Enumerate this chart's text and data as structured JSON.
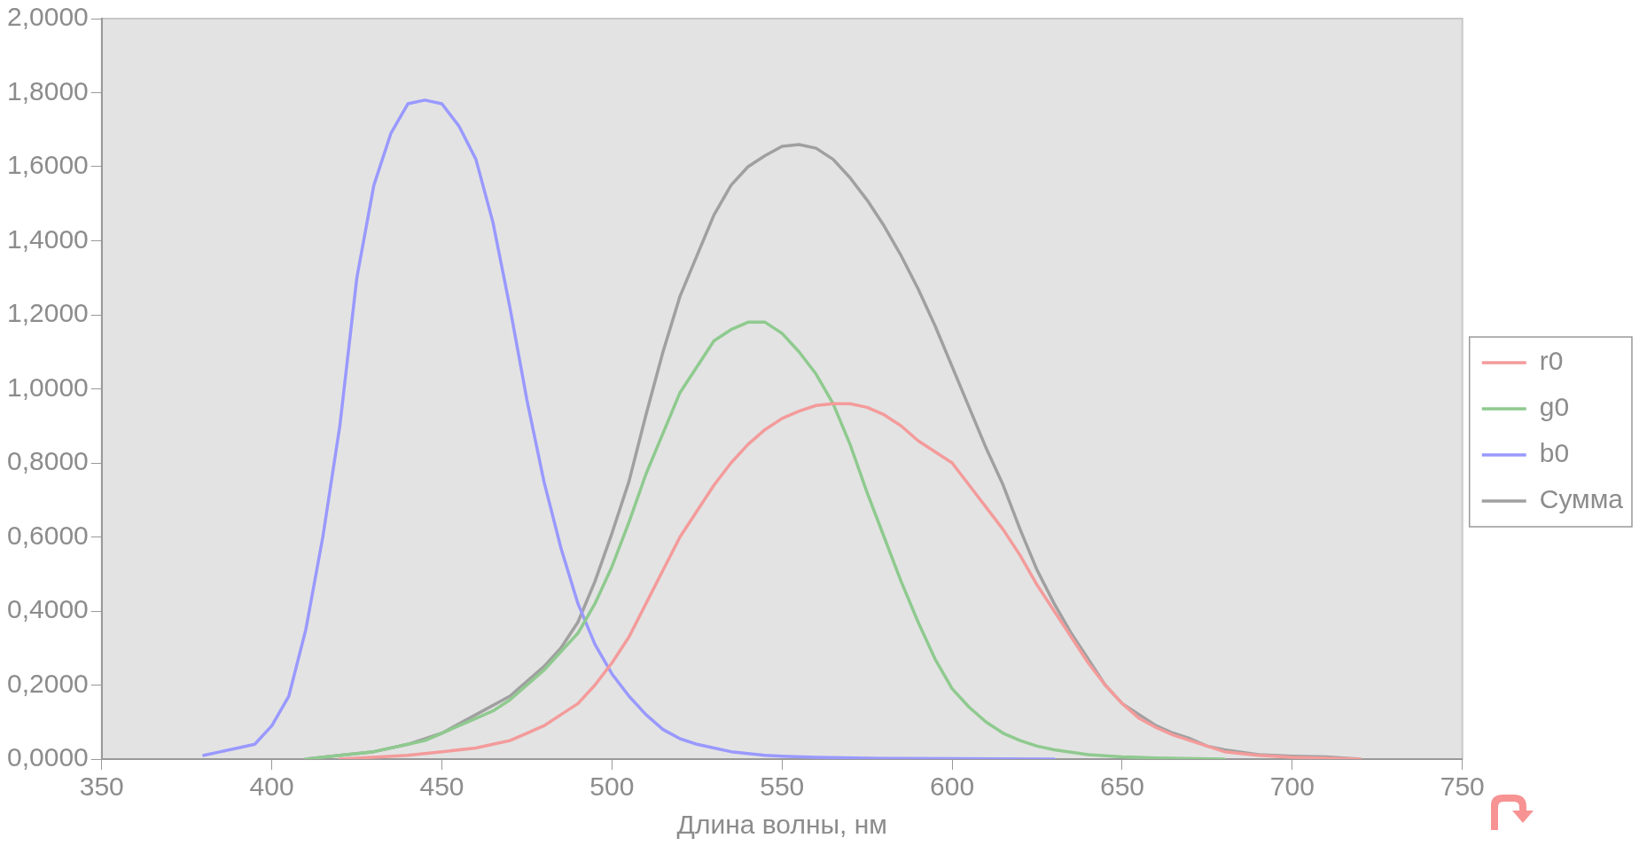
{
  "chart_data": {
    "type": "line",
    "xlabel": "Длина волны, нм",
    "xlim": [
      350,
      750
    ],
    "xticks": [
      350,
      400,
      450,
      500,
      550,
      600,
      650,
      700,
      750
    ],
    "ylim": [
      0,
      2
    ],
    "yticks": [
      {
        "value": 0,
        "label": "0,0000"
      },
      {
        "value": 0.2,
        "label": "0,2000"
      },
      {
        "value": 0.4,
        "label": "0,4000"
      },
      {
        "value": 0.6,
        "label": "0,6000"
      },
      {
        "value": 0.8,
        "label": "0,8000"
      },
      {
        "value": 1,
        "label": "1,0000"
      },
      {
        "value": 1.2,
        "label": "1,2000"
      },
      {
        "value": 1.4,
        "label": "1,4000"
      },
      {
        "value": 1.6,
        "label": "1,6000"
      },
      {
        "value": 1.8,
        "label": "1,8000"
      },
      {
        "value": 2,
        "label": "2,0000"
      }
    ],
    "grid": false,
    "legend": "right",
    "marker": "none",
    "line_style": "solid",
    "series": [
      {
        "name": "r0",
        "color": "#f49b9b",
        "x": [
          420,
          440,
          450,
          460,
          465,
          470,
          475,
          480,
          485,
          490,
          495,
          500,
          505,
          510,
          515,
          520,
          525,
          530,
          535,
          540,
          545,
          550,
          555,
          560,
          565,
          570,
          575,
          580,
          585,
          590,
          595,
          600,
          605,
          610,
          615,
          620,
          625,
          630,
          635,
          640,
          645,
          650,
          655,
          660,
          665,
          670,
          675,
          680,
          690,
          700,
          720
        ],
        "values": [
          0,
          0.01,
          0.02,
          0.03,
          0.04,
          0.05,
          0.07,
          0.09,
          0.12,
          0.15,
          0.2,
          0.26,
          0.33,
          0.42,
          0.51,
          0.6,
          0.67,
          0.74,
          0.8,
          0.85,
          0.89,
          0.92,
          0.94,
          0.955,
          0.96,
          0.96,
          0.95,
          0.93,
          0.9,
          0.86,
          0.83,
          0.8,
          0.74,
          0.68,
          0.62,
          0.55,
          0.47,
          0.4,
          0.33,
          0.26,
          0.2,
          0.15,
          0.11,
          0.085,
          0.065,
          0.05,
          0.035,
          0.02,
          0.01,
          0.005,
          0
        ]
      },
      {
        "name": "g0",
        "color": "#8fca8f",
        "x": [
          410,
          420,
          430,
          440,
          445,
          450,
          455,
          460,
          465,
          470,
          475,
          480,
          485,
          490,
          495,
          500,
          505,
          510,
          515,
          520,
          525,
          530,
          535,
          540,
          545,
          550,
          555,
          560,
          565,
          570,
          575,
          580,
          585,
          590,
          595,
          600,
          605,
          610,
          615,
          620,
          625,
          630,
          640,
          650,
          660,
          680
        ],
        "values": [
          0,
          0.01,
          0.02,
          0.04,
          0.05,
          0.07,
          0.09,
          0.11,
          0.13,
          0.16,
          0.2,
          0.24,
          0.29,
          0.34,
          0.42,
          0.52,
          0.64,
          0.77,
          0.88,
          0.99,
          1.06,
          1.13,
          1.16,
          1.18,
          1.18,
          1.15,
          1.1,
          1.04,
          0.96,
          0.85,
          0.72,
          0.6,
          0.48,
          0.37,
          0.27,
          0.19,
          0.14,
          0.1,
          0.07,
          0.05,
          0.035,
          0.025,
          0.012,
          0.006,
          0.003,
          0
        ]
      },
      {
        "name": "b0",
        "color": "#9999ff",
        "x": [
          380,
          385,
          390,
          395,
          400,
          405,
          410,
          415,
          420,
          425,
          430,
          435,
          440,
          445,
          450,
          455,
          460,
          465,
          470,
          475,
          480,
          485,
          490,
          495,
          500,
          505,
          510,
          515,
          520,
          525,
          530,
          535,
          540,
          545,
          550,
          560,
          580,
          630
        ],
        "values": [
          0.01,
          0.02,
          0.03,
          0.04,
          0.09,
          0.17,
          0.35,
          0.6,
          0.9,
          1.3,
          1.55,
          1.69,
          1.77,
          1.78,
          1.77,
          1.71,
          1.62,
          1.45,
          1.22,
          0.97,
          0.75,
          0.57,
          0.42,
          0.31,
          0.23,
          0.17,
          0.12,
          0.08,
          0.055,
          0.04,
          0.03,
          0.02,
          0.015,
          0.01,
          0.008,
          0.005,
          0.002,
          0
        ]
      },
      {
        "name": "Сумма",
        "color": "#a0a0a0",
        "x": [
          410,
          420,
          430,
          440,
          450,
          460,
          470,
          480,
          485,
          490,
          495,
          500,
          505,
          510,
          515,
          520,
          525,
          530,
          535,
          540,
          545,
          550,
          555,
          560,
          565,
          570,
          575,
          580,
          585,
          590,
          595,
          600,
          605,
          610,
          615,
          620,
          625,
          630,
          635,
          640,
          645,
          650,
          655,
          660,
          665,
          670,
          675,
          680,
          690,
          700,
          710,
          720
        ],
        "values": [
          0,
          0.01,
          0.02,
          0.04,
          0.07,
          0.12,
          0.17,
          0.25,
          0.3,
          0.37,
          0.48,
          0.61,
          0.75,
          0.93,
          1.1,
          1.25,
          1.36,
          1.47,
          1.55,
          1.6,
          1.63,
          1.655,
          1.66,
          1.65,
          1.62,
          1.57,
          1.51,
          1.44,
          1.36,
          1.27,
          1.17,
          1.06,
          0.95,
          0.84,
          0.74,
          0.62,
          0.51,
          0.42,
          0.34,
          0.27,
          0.2,
          0.15,
          0.12,
          0.09,
          0.07,
          0.055,
          0.035,
          0.025,
          0.012,
          0.008,
          0.006,
          0
        ]
      }
    ]
  }
}
